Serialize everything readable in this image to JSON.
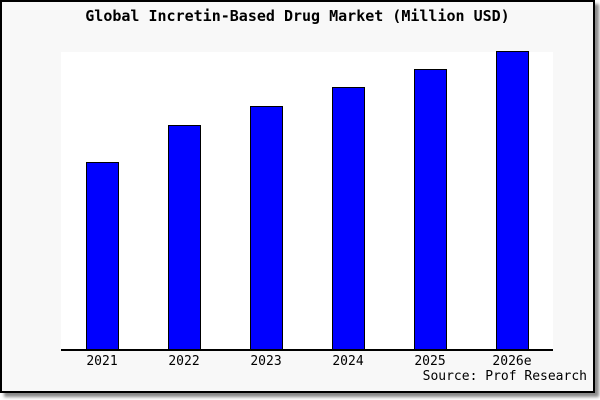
{
  "header": {
    "title": "Global Incretin-Based Drug Market (Million USD)"
  },
  "chart_data": {
    "type": "bar",
    "title": "Global Incretin-Based Drug Market (Million USD)",
    "categories": [
      "2021",
      "2022",
      "2023",
      "2024",
      "2025",
      "2026e"
    ],
    "values": [
      62.6,
      75.0,
      81.4,
      87.8,
      93.8,
      100
    ],
    "values_unit": "relative height, % of 2026e bar (no numeric y-axis shown)",
    "ylim": [
      0,
      100
    ],
    "xlabel": "",
    "ylabel": "",
    "grid": false,
    "legend": null,
    "axes_shown": "bottom-only",
    "bar_color": "#0000ff",
    "bar_edge_color": "#000000"
  },
  "footer": {
    "source": "Source: Prof Research"
  },
  "colors": {
    "card_background": "#f8f8f8",
    "plot_background": "#ffffff",
    "border": "#000000",
    "shadow": "#8a8a8a"
  }
}
